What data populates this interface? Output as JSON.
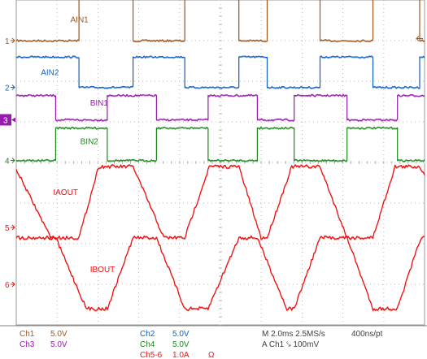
{
  "chart_data": {
    "type": "line",
    "colors": {
      "AIN1": "#a0561e",
      "AIN2": "#1260c8",
      "BIN1": "#9a1ab0",
      "BIN2": "#1a8a1a",
      "IAOUT": "#f01010",
      "IBOUT": "#f01010",
      "grid": "#b8b8b8"
    },
    "x_divisions": 10,
    "y_divisions": 8,
    "time_per_div_ms": 2.0,
    "grid": true,
    "series": [
      {
        "name": "AIN1",
        "marker": "1",
        "kind": "digital",
        "low_div": -1.0,
        "high_div": 0.4,
        "points": [
          [
            0,
            0
          ],
          [
            2.55,
            0
          ],
          [
            2.55,
            1
          ],
          [
            4.75,
            1
          ],
          [
            4.75,
            0
          ],
          [
            6.85,
            0
          ],
          [
            6.85,
            1
          ],
          [
            9.05,
            1
          ],
          [
            9.05,
            0
          ],
          [
            10.2,
            0
          ],
          [
            10.2,
            1
          ],
          [
            12.35,
            1
          ],
          [
            12.35,
            0
          ],
          [
            14.5,
            0
          ],
          [
            14.5,
            1
          ],
          [
            16.4,
            1
          ],
          [
            16.4,
            0
          ],
          [
            16.6,
            0
          ]
        ]
      },
      {
        "name": "AIN2",
        "marker": "2",
        "kind": "digital",
        "low_div": -2.15,
        "high_div": -1.4,
        "points": [
          [
            0,
            1
          ],
          [
            2.55,
            1
          ],
          [
            2.55,
            0
          ],
          [
            4.75,
            0
          ],
          [
            4.75,
            1
          ],
          [
            6.85,
            1
          ],
          [
            6.85,
            0
          ],
          [
            9.05,
            0
          ],
          [
            9.05,
            1
          ],
          [
            10.2,
            1
          ],
          [
            10.2,
            0
          ],
          [
            12.35,
            0
          ],
          [
            12.35,
            1
          ],
          [
            14.5,
            1
          ],
          [
            14.5,
            0
          ],
          [
            16.4,
            0
          ],
          [
            16.4,
            1
          ],
          [
            16.6,
            1
          ]
        ]
      },
      {
        "name": "BIN1",
        "marker": "3",
        "kind": "digital",
        "low_div": -2.95,
        "high_div": -2.35,
        "points": [
          [
            0,
            1
          ],
          [
            1.6,
            1
          ],
          [
            1.6,
            0
          ],
          [
            3.7,
            0
          ],
          [
            3.7,
            1
          ],
          [
            5.7,
            1
          ],
          [
            5.7,
            0
          ],
          [
            7.8,
            0
          ],
          [
            7.8,
            1
          ],
          [
            9.8,
            1
          ],
          [
            9.8,
            0
          ],
          [
            11.3,
            0
          ],
          [
            11.3,
            1
          ],
          [
            13.45,
            1
          ],
          [
            13.45,
            0
          ],
          [
            15.5,
            0
          ],
          [
            15.5,
            1
          ],
          [
            16.6,
            1
          ]
        ]
      },
      {
        "name": "BIN2",
        "marker": "4",
        "kind": "digital",
        "low_div": -3.95,
        "high_div": -3.15,
        "points": [
          [
            0,
            0
          ],
          [
            1.6,
            0
          ],
          [
            1.6,
            1
          ],
          [
            3.7,
            1
          ],
          [
            3.7,
            0
          ],
          [
            5.7,
            0
          ],
          [
            5.7,
            1
          ],
          [
            7.8,
            1
          ],
          [
            7.8,
            0
          ],
          [
            9.8,
            0
          ],
          [
            9.8,
            1
          ],
          [
            11.3,
            1
          ],
          [
            11.3,
            0
          ],
          [
            13.45,
            0
          ],
          [
            13.45,
            1
          ],
          [
            15.5,
            1
          ],
          [
            15.5,
            0
          ],
          [
            16.6,
            0
          ]
        ]
      },
      {
        "name": "IAOUT",
        "marker": "5",
        "kind": "analog",
        "low_div": -5.85,
        "high_div": -4.1,
        "points": [
          [
            0,
            0.96
          ],
          [
            1.4,
            0.0
          ],
          [
            2.55,
            0.0
          ],
          [
            3.35,
            1.0
          ],
          [
            4.75,
            1.0
          ],
          [
            6.0,
            0.0
          ],
          [
            6.85,
            0.0
          ],
          [
            7.85,
            1.0
          ],
          [
            9.05,
            1.0
          ],
          [
            9.95,
            0.0
          ],
          [
            10.2,
            0.0
          ],
          [
            11.2,
            1.0
          ],
          [
            12.35,
            1.0
          ],
          [
            13.45,
            0.0
          ],
          [
            14.5,
            0.0
          ],
          [
            15.4,
            1.0
          ],
          [
            16.4,
            1.0
          ],
          [
            16.6,
            0.9
          ]
        ]
      },
      {
        "name": "IBOUT",
        "marker": "6",
        "kind": "analog",
        "low_div": -7.6,
        "high_div": -5.85,
        "points": [
          [
            0,
            1.0
          ],
          [
            1.6,
            1.0
          ],
          [
            2.85,
            0.0
          ],
          [
            3.7,
            0.0
          ],
          [
            4.75,
            1.0
          ],
          [
            5.7,
            1.0
          ],
          [
            6.85,
            0.0
          ],
          [
            7.8,
            0.0
          ],
          [
            9.05,
            1.0
          ],
          [
            9.8,
            1.0
          ],
          [
            11.0,
            0.0
          ],
          [
            11.3,
            0.0
          ],
          [
            12.35,
            1.0
          ],
          [
            13.45,
            1.0
          ],
          [
            14.5,
            0.0
          ],
          [
            15.5,
            0.0
          ],
          [
            16.45,
            1.0
          ],
          [
            16.6,
            1.0
          ]
        ]
      }
    ],
    "annotations": [
      {
        "text": "AIN1",
        "series": "AIN1"
      },
      {
        "text": "AIN2",
        "series": "AIN2"
      },
      {
        "text": "BIN1",
        "series": "BIN1"
      },
      {
        "text": "BIN2",
        "series": "BIN2"
      },
      {
        "text": "IAOUT",
        "series": "IAOUT"
      },
      {
        "text": "IBOUT",
        "series": "IBOUT"
      }
    ],
    "trigger_position_div": 0.0
  },
  "status_bar": {
    "ch1_label": "Ch1",
    "ch1_scale": "5.0V",
    "ch2_label": "Ch2",
    "ch2_scale": "5.0V",
    "ch3_label": "Ch3",
    "ch3_scale": "5.0V",
    "ch4_label": "Ch4",
    "ch4_scale": "5.0V",
    "math_label": "Ch5-6",
    "math_scale": "1.0A",
    "math_unit": "Ω",
    "timebase": "M 2.0ms 2.5MS/s",
    "record": "400ns/pt",
    "trigger": "A  Ch1  ⤥  100mV"
  }
}
